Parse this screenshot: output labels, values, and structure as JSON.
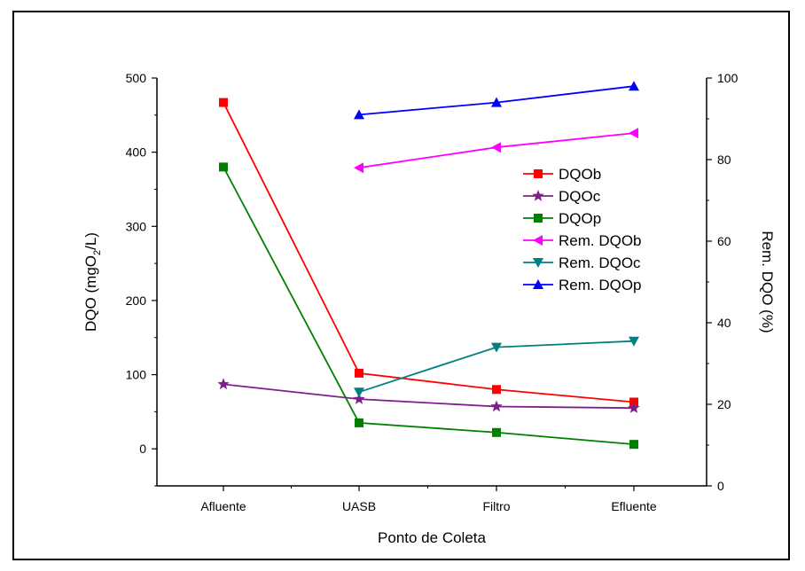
{
  "chart_data": {
    "type": "line",
    "xlabel": "Ponto de Coleta",
    "ylabel_left": "DQO (mgO2/L)",
    "ylabel_right": "Rem. DQO (%)",
    "categories": [
      "Afluente",
      "UASB",
      "Filtro",
      "Efluente"
    ],
    "ylim_left": [
      -50,
      500
    ],
    "yticks_left": [
      0,
      100,
      200,
      300,
      400,
      500
    ],
    "ylim_right": [
      0,
      100
    ],
    "yticks_right": [
      0,
      20,
      40,
      60,
      80,
      100
    ],
    "grid": false,
    "legend": "right",
    "series": [
      {
        "name": "DQOb",
        "axis": "left",
        "marker": "square",
        "color": "#ff0000",
        "values": [
          467,
          102,
          80,
          63
        ]
      },
      {
        "name": "DQOc",
        "axis": "left",
        "marker": "star",
        "color": "#7f1f8c",
        "values": [
          87,
          67,
          57,
          55
        ]
      },
      {
        "name": "DQOp",
        "axis": "left",
        "marker": "square",
        "color": "#008000",
        "values": [
          380,
          35,
          22,
          6
        ]
      },
      {
        "name": "Rem. DQOb",
        "axis": "right",
        "marker": "triangle-left",
        "color": "#ff00ff",
        "values": [
          null,
          78,
          83,
          86.5
        ]
      },
      {
        "name": "Rem. DQOc",
        "axis": "right",
        "marker": "triangle-down",
        "color": "#008080",
        "values": [
          null,
          23,
          34,
          35.5
        ]
      },
      {
        "name": "Rem. DQOp",
        "axis": "right",
        "marker": "triangle-up",
        "color": "#0000ff",
        "values": [
          null,
          91,
          94,
          98
        ]
      }
    ]
  }
}
